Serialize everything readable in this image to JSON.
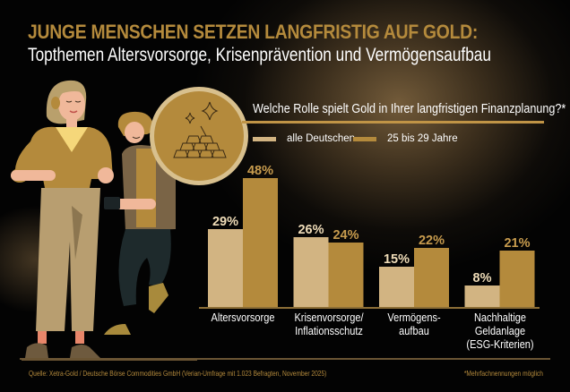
{
  "header": {
    "title": "JUNGE MENSCHEN SETZEN LANGFRISTIG AUF GOLD:",
    "subtitle": "Topthemen Altersvorsorge, Krisenprävention und Vermögensaufbau"
  },
  "question": "Welche Rolle spielt Gold in Ihrer langfristigen Finanzplanung?*",
  "icons": {
    "badge": "gold-bars-sparkle-icon",
    "illustration": "people-illustration"
  },
  "colors": {
    "gold_title": "#b48a3c",
    "series_all": "#d2b482",
    "series_young": "#b48a3c",
    "background": "#030303"
  },
  "chart_data": {
    "type": "bar",
    "title": "Welche Rolle spielt Gold in Ihrer langfristigen Finanzplanung?*",
    "xlabel": "",
    "ylabel": "",
    "ylim": [
      0,
      50
    ],
    "grid": false,
    "legend_position": "top",
    "categories": [
      [
        "Altersvorsorge"
      ],
      [
        "Krisenvorsorge/",
        "Inflationsschutz"
      ],
      [
        "Vermögens-",
        "aufbau"
      ],
      [
        "Nachhaltige",
        "Geldanlage",
        "(ESG-Kriterien)"
      ]
    ],
    "series": [
      {
        "name": "alle Deutschen",
        "values": [
          29,
          26,
          15,
          8
        ],
        "labels": [
          "29%",
          "26%",
          "15%",
          "8%"
        ],
        "color": "#d2b482",
        "label_color": "#efdcb8"
      },
      {
        "name": "25 bis 29 Jahre",
        "values": [
          48,
          24,
          22,
          21
        ],
        "labels": [
          "48%",
          "24%",
          "22%",
          "21%"
        ],
        "color": "#b48a3c",
        "label_color": "#c89c4e"
      }
    ]
  },
  "footer": {
    "source": "Quelle: Xetra-Gold / Deutsche Börse Commodities GmbH (Verian-Umfrage mit 1.023 Befragten, November 2025)",
    "footnote": "*Mehrfachnennungen möglich"
  }
}
